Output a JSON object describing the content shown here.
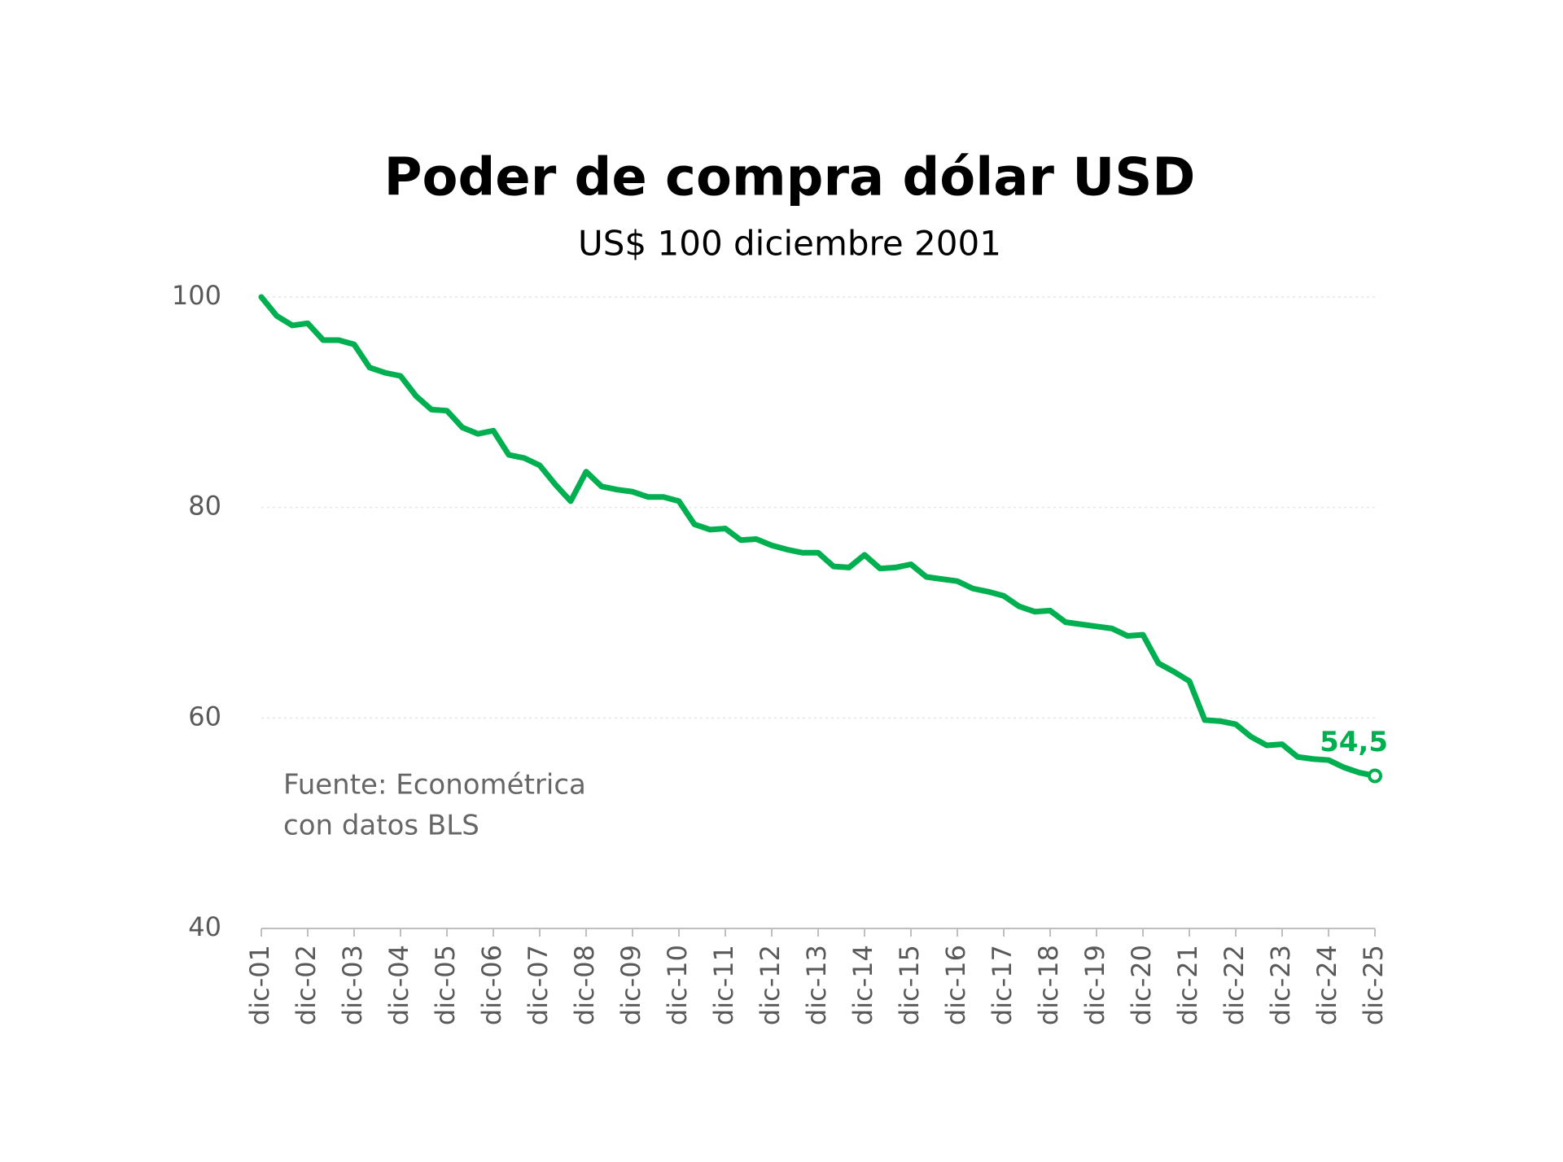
{
  "chart_data": {
    "type": "line",
    "title": "Poder de compra dólar USD",
    "subtitle": "US$ 100 diciembre 2001",
    "annotations": [
      "Fuente: Econométrica",
      "con datos BLS"
    ],
    "categories": [
      "dic-01",
      null,
      null,
      "dic-02",
      null,
      null,
      "dic-03",
      null,
      null,
      "dic-04",
      null,
      null,
      "dic-05",
      null,
      null,
      "dic-06",
      null,
      null,
      "dic-07",
      null,
      null,
      "dic-08",
      null,
      null,
      "dic-09",
      null,
      null,
      "dic-10",
      null,
      null,
      "dic-11",
      null,
      null,
      "dic-12",
      null,
      null,
      "dic-13",
      null,
      null,
      "dic-14",
      null,
      null,
      "dic-15",
      null,
      null,
      "dic-16",
      null,
      null,
      "dic-17",
      null,
      null,
      "dic-18",
      null,
      null,
      "dic-19",
      null,
      null,
      "dic-20",
      null,
      null,
      "dic-21",
      null,
      null,
      "dic-22",
      null,
      null,
      "dic-23",
      null,
      null,
      "dic-24",
      null,
      null,
      "dic-25"
    ],
    "values": [
      100,
      98.2,
      97.3,
      97.5,
      95.9,
      95.9,
      95.5,
      93.3,
      92.8,
      92.5,
      90.6,
      89.3,
      89.2,
      87.6,
      87.0,
      87.3,
      85.0,
      84.7,
      84.0,
      82.2,
      80.6,
      83.4,
      82.0,
      81.7,
      81.5,
      81.0,
      81.0,
      80.6,
      78.4,
      77.9,
      78.0,
      76.9,
      77.0,
      76.4,
      76.0,
      75.7,
      75.7,
      74.4,
      74.3,
      75.5,
      74.2,
      74.3,
      74.6,
      73.4,
      73.2,
      73.0,
      72.3,
      72.0,
      71.6,
      70.6,
      70.1,
      70.2,
      69.1,
      68.9,
      68.7,
      68.5,
      67.8,
      67.9,
      65.2,
      64.4,
      63.5,
      59.8,
      59.7,
      59.4,
      58.2,
      57.4,
      57.5,
      56.3,
      56.1,
      56.0,
      55.3,
      54.8,
      54.5
    ],
    "value_labels": [
      null,
      null,
      null,
      null,
      null,
      null,
      null,
      null,
      null,
      null,
      null,
      null,
      null,
      null,
      null,
      null,
      null,
      null,
      null,
      null,
      null,
      null,
      null,
      null,
      null,
      null,
      null,
      null,
      null,
      null,
      null,
      null,
      null,
      null,
      null,
      null,
      null,
      null,
      null,
      null,
      null,
      null,
      null,
      null,
      null,
      null,
      null,
      null,
      null,
      null,
      null,
      null,
      null,
      null,
      null,
      null,
      null,
      null,
      null,
      null,
      null,
      null,
      null,
      null,
      null,
      null,
      null,
      null,
      null,
      null,
      null,
      null,
      "54,5"
    ],
    "color": "#00b050",
    "ylim": [
      40,
      100
    ],
    "yticks": [
      40,
      60,
      80,
      100
    ],
    "grid": true
  }
}
